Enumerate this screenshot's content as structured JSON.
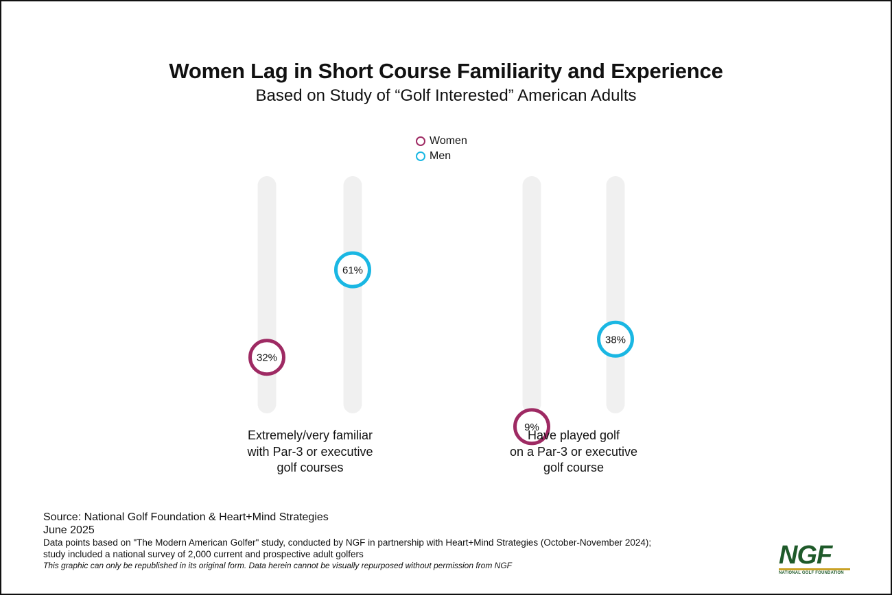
{
  "title": "Women Lag in Short Course Familiarity and Experience",
  "subtitle": "Based on Study of “Golf Interested” American Adults",
  "legend": [
    {
      "label": "Women",
      "color": "#9e2a63"
    },
    {
      "label": "Men",
      "color": "#1ab7e3"
    }
  ],
  "colors": {
    "track": "#f0f0f0",
    "women": "#9e2a63",
    "men": "#1ab7e3"
  },
  "chart_data": {
    "type": "dot",
    "categories": [
      "Extremely/very familiar with Par-3 or executive golf courses",
      "Have played golf on a Par-3 or executive golf course"
    ],
    "series": [
      {
        "name": "Women",
        "values": [
          32,
          9
        ],
        "labels": [
          "32%",
          "9%"
        ]
      },
      {
        "name": "Men",
        "values": [
          61,
          38
        ],
        "labels": [
          "61%",
          "38%"
        ]
      }
    ],
    "ylim": [
      0,
      100
    ],
    "legend_position": "top-center",
    "grid": false
  },
  "categories_display": [
    {
      "lines": [
        "Extremely/very familiar",
        "with Par-3 or executive",
        "golf courses"
      ]
    },
    {
      "lines": [
        "Have played golf",
        "on a Par-3 or executive",
        "golf course"
      ]
    }
  ],
  "footer": {
    "source": "Source: National Golf Foundation & Heart+Mind Strategies",
    "date": "June 2025",
    "note_1": "Data points based on \"The Modern American Golfer\" study, conducted by NGF in partnership with Heart+Mind Strategies (October-November 2024);",
    "note_2": "study included a national survey of 2,000 current and prospective adult golfers",
    "disclaimer": "This graphic can only be republished in its original form. Data herein cannot be visually repurposed without permission from NGF"
  },
  "logo": {
    "mark": "NGF",
    "tagline": "NATIONAL GOLF FOUNDATION"
  }
}
